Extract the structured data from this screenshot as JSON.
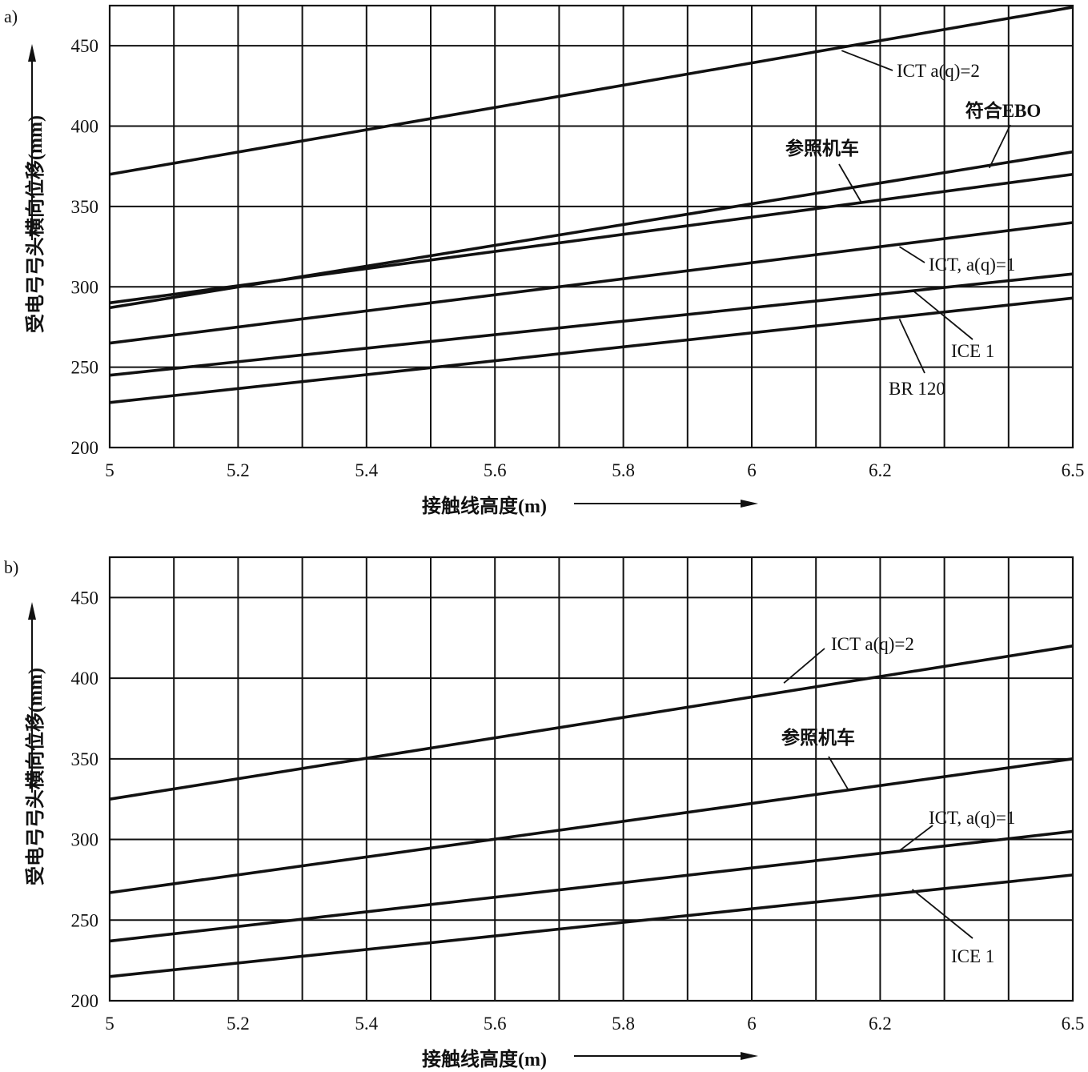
{
  "chart_data": [
    {
      "type": "line",
      "panel_label": "a)",
      "xlabel": "接触线高度(m)",
      "ylabel": "受电弓弓头横向位移(mm)",
      "xlim": [
        5,
        6.5
      ],
      "ylim": [
        200,
        475
      ],
      "x_ticks": [
        "5",
        "5.2",
        "5.4",
        "5.6",
        "5.8",
        "6",
        "6.2",
        "6.5"
      ],
      "y_ticks": [
        "200",
        "250",
        "300",
        "350",
        "400",
        "450"
      ],
      "grid": true,
      "series": [
        {
          "name": "ICT a(q)=2",
          "x": [
            5,
            6.5
          ],
          "y": [
            370,
            474
          ]
        },
        {
          "name": "符合EBO",
          "x": [
            5,
            6.5
          ],
          "y": [
            287,
            384
          ]
        },
        {
          "name": "参照机车",
          "x": [
            5,
            6.5
          ],
          "y": [
            290,
            370
          ]
        },
        {
          "name": "ICT, a(q)=1",
          "x": [
            5,
            6.5
          ],
          "y": [
            265,
            340
          ]
        },
        {
          "name": "ICE 1",
          "x": [
            5,
            6.5
          ],
          "y": [
            245,
            308
          ]
        },
        {
          "name": "BR 120",
          "x": [
            5,
            6.5
          ],
          "y": [
            228,
            293
          ]
        }
      ]
    },
    {
      "type": "line",
      "panel_label": "b)",
      "xlabel": "接触线高度(m)",
      "ylabel": "受电弓弓头横向位移(mm)",
      "xlim": [
        5,
        6.5
      ],
      "ylim": [
        200,
        475
      ],
      "x_ticks": [
        "5",
        "5.2",
        "5.4",
        "5.6",
        "5.8",
        "6",
        "6.2",
        "6.5"
      ],
      "y_ticks": [
        "200",
        "250",
        "300",
        "350",
        "400",
        "450"
      ],
      "grid": true,
      "series": [
        {
          "name": "ICT a(q)=2",
          "x": [
            5,
            6.5
          ],
          "y": [
            325,
            420
          ]
        },
        {
          "name": "参照机车",
          "x": [
            5,
            6.5
          ],
          "y": [
            267,
            350
          ]
        },
        {
          "name": "ICT, a(q)=1",
          "x": [
            5,
            6.5
          ],
          "y": [
            237,
            305
          ]
        },
        {
          "name": "ICE 1",
          "x": [
            5,
            6.5
          ],
          "y": [
            215,
            278
          ]
        }
      ]
    }
  ]
}
